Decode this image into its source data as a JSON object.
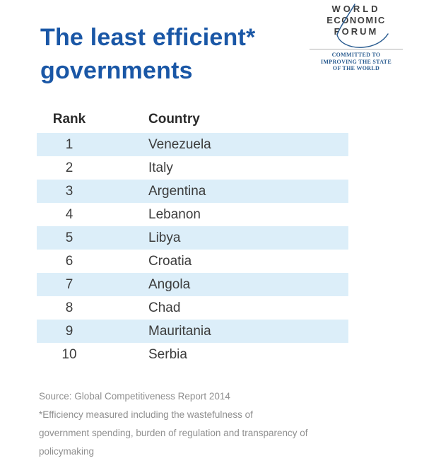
{
  "chart_data": {
    "type": "table",
    "title": "The least efficient* governments",
    "columns": [
      "Rank",
      "Country"
    ],
    "rows": [
      [
        1,
        "Venezuela"
      ],
      [
        2,
        "Italy"
      ],
      [
        3,
        "Argentina"
      ],
      [
        4,
        "Lebanon"
      ],
      [
        5,
        "Libya"
      ],
      [
        6,
        "Croatia"
      ],
      [
        7,
        "Angola"
      ],
      [
        8,
        "Chad"
      ],
      [
        9,
        "Mauritania"
      ],
      [
        10,
        "Serbia"
      ]
    ],
    "source": "Source: Global Competitiveness Report 2014",
    "footnote": "*Efficiency measured including the wastefulness of government spending, burden of regulation and transparency of policymaking",
    "layout": {
      "striped_rows": "odd",
      "stripe_color": "#dceef9",
      "grid": false
    }
  },
  "header": {
    "title_line1": "The least efficient*",
    "title_line2": "governments"
  },
  "logo": {
    "line1": "WORLD",
    "line2": "ECONOMIC",
    "line3": "FORUM",
    "tagline1": "COMMITTED TO",
    "tagline2": "IMPROVING THE STATE",
    "tagline3": "OF THE WORLD"
  },
  "table": {
    "rank_header": "Rank",
    "country_header": "Country",
    "rows": [
      {
        "rank": "1",
        "country": "Venezuela"
      },
      {
        "rank": "2",
        "country": "Italy"
      },
      {
        "rank": "3",
        "country": "Argentina"
      },
      {
        "rank": "4",
        "country": "Lebanon"
      },
      {
        "rank": "5",
        "country": "Libya"
      },
      {
        "rank": "6",
        "country": "Croatia"
      },
      {
        "rank": "7",
        "country": "Angola"
      },
      {
        "rank": "8",
        "country": "Chad"
      },
      {
        "rank": "9",
        "country": "Mauritania"
      },
      {
        "rank": "10",
        "country": "Serbia"
      }
    ]
  },
  "footer": {
    "source": "Source: Global Competitiveness Report 2014",
    "note_line1": "*Efficiency measured including the wastefulness of",
    "note_line2": "government spending, burden of regulation and transparency of",
    "note_line3": "policymaking"
  },
  "colors": {
    "title_blue": "#1a57a6",
    "stripe_blue": "#dceef9",
    "logo_gray": "#3f3f3f",
    "logo_blue": "#2a5c90",
    "text_dark": "#2b2b2b",
    "footer_gray": "#8f8f8f"
  }
}
